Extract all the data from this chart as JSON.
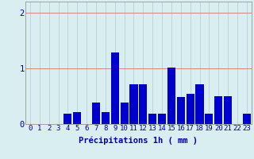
{
  "categories": [
    0,
    1,
    2,
    3,
    4,
    5,
    6,
    7,
    8,
    9,
    10,
    11,
    12,
    13,
    14,
    15,
    16,
    17,
    18,
    19,
    20,
    21,
    22,
    23
  ],
  "values": [
    0,
    0,
    0,
    0,
    0.18,
    0.22,
    0,
    0.38,
    0.22,
    1.28,
    0.38,
    0.72,
    0.72,
    0.18,
    0.18,
    1.02,
    0.48,
    0.55,
    0.72,
    0.18,
    0.5,
    0.5,
    0,
    0.18
  ],
  "bar_color": "#0000cc",
  "bg_color": "#d8eef0",
  "grid_color_h": "#cc8888",
  "grid_color_v": "#b0cccc",
  "xlabel": "Précipitations 1h ( mm )",
  "xlabel_color": "#0000aa",
  "tick_color": "#0000aa",
  "ylim": [
    0,
    2.2
  ],
  "yticks": [
    0,
    1,
    2
  ],
  "xlabel_fontsize": 7.5,
  "tick_fontsize": 6.5
}
